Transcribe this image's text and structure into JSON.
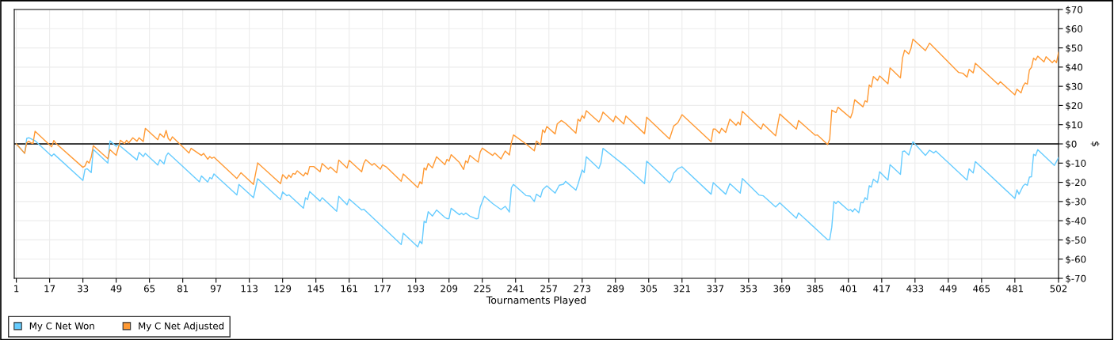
{
  "chart_data": {
    "type": "line",
    "xlabel": "Tournaments Played",
    "ylabel": "$",
    "xlim": [
      0,
      502
    ],
    "xticks": [
      1,
      17,
      33,
      49,
      65,
      81,
      97,
      113,
      129,
      145,
      161,
      177,
      193,
      209,
      225,
      241,
      257,
      273,
      289,
      305,
      321,
      337,
      353,
      369,
      385,
      401,
      417,
      433,
      449,
      465,
      481,
      502
    ],
    "ylim": [
      -70,
      70
    ],
    "yticks": [
      {
        "value": 70,
        "label": "$70"
      },
      {
        "value": 60,
        "label": "$60"
      },
      {
        "value": 50,
        "label": "$50"
      },
      {
        "value": 40,
        "label": "$40"
      },
      {
        "value": 30,
        "label": "$30"
      },
      {
        "value": 20,
        "label": "$20"
      },
      {
        "value": 10,
        "label": "$10"
      },
      {
        "value": 0,
        "label": "$0"
      },
      {
        "value": -10,
        "label": "$-10"
      },
      {
        "value": -20,
        "label": "$-20"
      },
      {
        "value": -30,
        "label": "$-30"
      },
      {
        "value": -40,
        "label": "$-40"
      },
      {
        "value": -50,
        "label": "$-50"
      },
      {
        "value": -60,
        "label": "$-60"
      },
      {
        "value": -70,
        "label": "$-70"
      }
    ],
    "grid": true,
    "legend": "bottom left",
    "marker": "none",
    "line_style": "solid",
    "ref_lines": [
      {
        "axis": "y",
        "value": 0,
        "color": "#000000"
      }
    ],
    "series": [
      {
        "name": "My C Net Won",
        "color": "#66ccff",
        "x": [
          1,
          5,
          6,
          7,
          10,
          18,
          19,
          33,
          34,
          35,
          37,
          38,
          45,
          46,
          49,
          50,
          59,
          60,
          62,
          63,
          69,
          70,
          72,
          73,
          74,
          89,
          90,
          93,
          94,
          95,
          96,
          107,
          108,
          115,
          117,
          128,
          129,
          131,
          132,
          139,
          140,
          141,
          142,
          147,
          148,
          155,
          156,
          160,
          161,
          167,
          168,
          186,
          187,
          194,
          195,
          196,
          197,
          198,
          199,
          201,
          203,
          207,
          208,
          209,
          210,
          214,
          215,
          216,
          217,
          219,
          222,
          223,
          224,
          226,
          230,
          234,
          236,
          238,
          239,
          240,
          246,
          248,
          250,
          251,
          253,
          254,
          256,
          260,
          262,
          264,
          265,
          270,
          271,
          273,
          274,
          275,
          281,
          282,
          283,
          294,
          303,
          304,
          315,
          316,
          317,
          319,
          321,
          335,
          336,
          342,
          344,
          349,
          350,
          358,
          360,
          366,
          368,
          376,
          377,
          391,
          392,
          393,
          394,
          395,
          396,
          401,
          402,
          403,
          404,
          406,
          407,
          408,
          409,
          410,
          411,
          412,
          413,
          415,
          416,
          420,
          421,
          426,
          427,
          428,
          430,
          432,
          438,
          440,
          442,
          443,
          458,
          459,
          461,
          462,
          481,
          482,
          483,
          485,
          486,
          487,
          488,
          489,
          490,
          491,
          492,
          500,
          502
        ],
        "values": [
          0,
          -4.9,
          2.9,
          3.2,
          1.6,
          -6.4,
          -5.2,
          -19,
          -13.3,
          -12.9,
          -14.9,
          -2.9,
          -10,
          1.6,
          -1.2,
          -0.3,
          -8.4,
          -4.4,
          -6.6,
          -4.9,
          -11,
          -8.2,
          -10.4,
          -6.3,
          -4.7,
          -19.8,
          -16.7,
          -19.9,
          -17.5,
          -18.2,
          -15.6,
          -26.6,
          -21.1,
          -28,
          -18.1,
          -29,
          -25,
          -27,
          -26.5,
          -33.5,
          -28,
          -29,
          -24.8,
          -29.8,
          -28,
          -35.1,
          -27.3,
          -31.7,
          -28.7,
          -34.4,
          -34,
          -52.4,
          -46.5,
          -53.6,
          -50.6,
          -52,
          -40.3,
          -41,
          -35.3,
          -37.6,
          -34.4,
          -38.3,
          -38.9,
          -38.9,
          -33.5,
          -36.9,
          -36,
          -37,
          -36,
          -37.6,
          -39,
          -38.8,
          -32.8,
          -27.3,
          -31.1,
          -34.2,
          -32.5,
          -35.5,
          -22.8,
          -21.1,
          -26.9,
          -27.2,
          -30,
          -26.2,
          -27.7,
          -23.9,
          -21.8,
          -25.6,
          -21.5,
          -21,
          -19.5,
          -24.1,
          -21,
          -13.6,
          -14.9,
          -6.7,
          -12.9,
          -10,
          -2.3,
          -11.8,
          -20.7,
          -9,
          -20.2,
          -18.6,
          -15.2,
          -12.9,
          -11.9,
          -26.2,
          -20.2,
          -26.2,
          -20.7,
          -25.6,
          -18,
          -26.6,
          -27,
          -32.8,
          -30.7,
          -38.7,
          -35.9,
          -49.9,
          -49.8,
          -43.3,
          -30,
          -31.1,
          -29.8,
          -34.6,
          -34.2,
          -35.3,
          -33.8,
          -35.8,
          -30.4,
          -30.7,
          -28,
          -29,
          -21.8,
          -22.5,
          -18.4,
          -20.2,
          -14.5,
          -18.8,
          -10.8,
          -15.9,
          -4,
          -3.7,
          -5.8,
          1.1,
          -6,
          -3.3,
          -4.7,
          -3.7,
          -18.8,
          -13,
          -15.1,
          -9.2,
          -28.4,
          -23.9,
          -26.2,
          -21.8,
          -20.9,
          -21.6,
          -17.3,
          -17.1,
          -5.4,
          -6.1,
          -3,
          -11.2,
          -7.1
        ]
      },
      {
        "name": "My C Net Adjusted",
        "color": "#ff9933",
        "x": [
          1,
          5,
          6,
          7,
          8,
          9,
          10,
          18,
          19,
          20,
          33,
          34,
          35,
          36,
          37,
          38,
          45,
          46,
          49,
          51,
          53,
          54,
          55,
          57,
          59,
          60,
          62,
          63,
          69,
          70,
          72,
          73,
          74,
          75,
          76,
          84,
          85,
          90,
          91,
          93,
          94,
          95,
          96,
          107,
          109,
          115,
          117,
          128,
          129,
          131,
          132,
          133,
          134,
          135,
          136,
          139,
          140,
          141,
          142,
          144,
          147,
          148,
          151,
          152,
          155,
          156,
          160,
          161,
          167,
          168,
          169,
          172,
          173,
          176,
          177,
          179,
          186,
          187,
          194,
          195,
          196,
          197,
          198,
          199,
          201,
          203,
          207,
          208,
          209,
          210,
          214,
          216,
          217,
          218,
          219,
          223,
          224,
          225,
          230,
          231,
          234,
          236,
          238,
          239,
          240,
          246,
          250,
          251,
          253,
          254,
          255,
          256,
          260,
          261,
          263,
          265,
          270,
          271,
          272,
          273,
          274,
          275,
          281,
          282,
          283,
          288,
          289,
          293,
          294,
          303,
          304,
          315,
          317,
          319,
          321,
          335,
          336,
          337,
          339,
          340,
          342,
          344,
          347,
          348,
          349,
          350,
          359,
          360,
          366,
          368,
          376,
          377,
          385,
          386,
          391,
          392,
          393,
          395,
          396,
          402,
          403,
          404,
          408,
          409,
          410,
          411,
          412,
          413,
          415,
          416,
          420,
          421,
          426,
          427,
          428,
          430,
          431,
          432,
          438,
          440,
          454,
          456,
          458,
          459,
          461,
          462,
          473,
          474,
          481,
          482,
          484,
          485,
          486,
          487,
          488,
          489,
          490,
          491,
          492,
          495,
          496,
          499,
          500,
          501,
          502
        ],
        "values": [
          0,
          -4.9,
          0.7,
          1.4,
          0.5,
          0.2,
          6.6,
          -1.5,
          1.8,
          0.3,
          -12.2,
          -11.5,
          -9,
          -10,
          -6.9,
          -0.9,
          -7.7,
          -3,
          -6,
          1.9,
          0.2,
          1.9,
          0.5,
          3.2,
          1.4,
          3.2,
          1.2,
          8.1,
          2.2,
          5.3,
          3.4,
          7,
          2.9,
          1.6,
          3.7,
          -4.7,
          -2.3,
          -6,
          -4.9,
          -8,
          -6.6,
          -7.5,
          -6.9,
          -18,
          -15,
          -21.1,
          -9.9,
          -20.7,
          -16,
          -18.1,
          -16.2,
          -17.5,
          -15.4,
          -15.8,
          -14,
          -16.7,
          -15,
          -16,
          -11.8,
          -11.8,
          -14.5,
          -10.2,
          -13.2,
          -12,
          -15,
          -8.4,
          -12.6,
          -8.5,
          -14.5,
          -10.2,
          -8.2,
          -11.1,
          -10.2,
          -13.2,
          -10.9,
          -12.1,
          -19.5,
          -15.6,
          -22.8,
          -19.7,
          -20.8,
          -12.5,
          -13.6,
          -10.2,
          -12.5,
          -6.7,
          -10.8,
          -8,
          -9,
          -5.6,
          -9.7,
          -13.3,
          -8.8,
          -9.9,
          -6,
          -9.5,
          -4.2,
          -2.2,
          -6,
          -4.7,
          -7.8,
          -3.7,
          -5.8,
          0.8,
          4.7,
          0,
          -3.6,
          1.5,
          -0.5,
          7.3,
          5.9,
          9.1,
          5.2,
          10.4,
          12.2,
          10.7,
          5.6,
          12.9,
          11.8,
          14.8,
          13.4,
          17.3,
          11.4,
          13.2,
          16.6,
          11.5,
          14.5,
          10.4,
          14.5,
          5.3,
          13.9,
          2.6,
          9.3,
          11,
          15.2,
          1.1,
          7.7,
          7.7,
          5.6,
          8.1,
          6,
          12.9,
          9.7,
          11.4,
          10,
          17,
          7.7,
          10.4,
          4.2,
          15.6,
          7.7,
          12.2,
          4.5,
          4.7,
          -0.3,
          2.5,
          17.6,
          16.3,
          19.1,
          13.6,
          16.6,
          23,
          19.3,
          22.5,
          21.8,
          30.7,
          29.6,
          35.1,
          33,
          35.4,
          31.3,
          39.6,
          34.4,
          44.7,
          48.8,
          46.8,
          49.5,
          54.6,
          48.6,
          52.5,
          37.2,
          36.8,
          34.8,
          38.8,
          37,
          42,
          31,
          32.4,
          25.5,
          28.5,
          26.6,
          30.2,
          31.8,
          31.1,
          38.5,
          39.9,
          44.7,
          43.6,
          45.7,
          42.7,
          45.4,
          42.3,
          43.6,
          42.3,
          47.7
        ]
      }
    ]
  }
}
